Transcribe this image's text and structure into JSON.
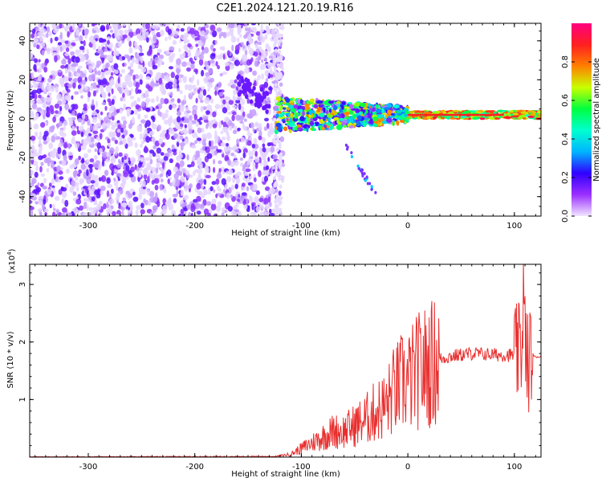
{
  "title": "C2E1.2024.121.20.19.R16",
  "chart_data": [
    {
      "type": "heatmap",
      "xlabel": "Height of straight line (km)",
      "ylabel": "Frequency (Hz)",
      "xlim": [
        -355,
        125
      ],
      "ylim": [
        -50,
        49
      ],
      "xticks": [
        -300,
        -200,
        -100,
        0,
        100
      ],
      "xtick_labels": [
        "-300",
        "-200",
        "-100",
        "0",
        "100"
      ],
      "yticks": [
        -40,
        -20,
        0,
        20,
        40
      ],
      "ytick_labels": [
        "-40",
        "-20",
        "0",
        "20",
        "40"
      ],
      "grid": false,
      "colorbar": {
        "label": "Normalized spectral amplitude",
        "range": [
          0,
          1
        ],
        "ticks": [
          0.0,
          0.2,
          0.4,
          0.6,
          0.8
        ],
        "tick_labels": [
          "0.0",
          "0.2",
          "0.4",
          "0.6",
          "0.8"
        ],
        "colormap": [
          "#f2e6ff",
          "#9b30ff",
          "#3000ff",
          "#00b4ff",
          "#00ffd0",
          "#00ff40",
          "#c8ff00",
          "#ff8000",
          "#ff2020",
          "#ff0080"
        ]
      },
      "regions": [
        {
          "x_range": [
            -355,
            -125
          ],
          "y_range": [
            -50,
            49
          ],
          "amplitude": 0.1
        },
        {
          "x_range": [
            -125,
            0
          ],
          "y_center": 2,
          "y_halfwidth": 6,
          "amplitude": 0.45
        },
        {
          "x_range": [
            0,
            125
          ],
          "y_center": 2,
          "y_halfwidth": 2,
          "amplitude": 0.85
        }
      ]
    },
    {
      "type": "line",
      "xlabel": "Height of straight line (km)",
      "ylabel": "SNR (10 * v/v)",
      "y_multiplier_label": "(x10",
      "y_multiplier_exp": "4",
      "y_multiplier_close": ")",
      "xlim": [
        -355,
        125
      ],
      "ylim": [
        0,
        3.35
      ],
      "xticks": [
        -300,
        -200,
        -100,
        0,
        100
      ],
      "xtick_labels": [
        "-300",
        "-200",
        "-100",
        "0",
        "100"
      ],
      "yticks": [
        1,
        2,
        3
      ],
      "ytick_labels": [
        "1",
        "2",
        "3"
      ],
      "grid": false,
      "series": [
        {
          "color": "#e8302f",
          "x": [
            -355,
            -125,
            -110,
            -100,
            -90,
            -80,
            -70,
            -60,
            -50,
            -40,
            -30,
            -20,
            -15,
            -10,
            -5,
            0,
            10,
            20,
            30,
            40,
            60,
            80,
            100,
            105,
            108,
            110,
            112,
            115,
            125
          ],
          "y": [
            0.0,
            0.01,
            0.05,
            0.15,
            0.25,
            0.35,
            0.45,
            0.45,
            0.55,
            0.65,
            0.8,
            0.9,
            1.1,
            1.2,
            1.3,
            1.3,
            1.5,
            1.6,
            1.7,
            1.75,
            1.8,
            1.78,
            1.77,
            1.8,
            2.0,
            2.2,
            1.6,
            1.75,
            1.74
          ]
        }
      ]
    }
  ]
}
